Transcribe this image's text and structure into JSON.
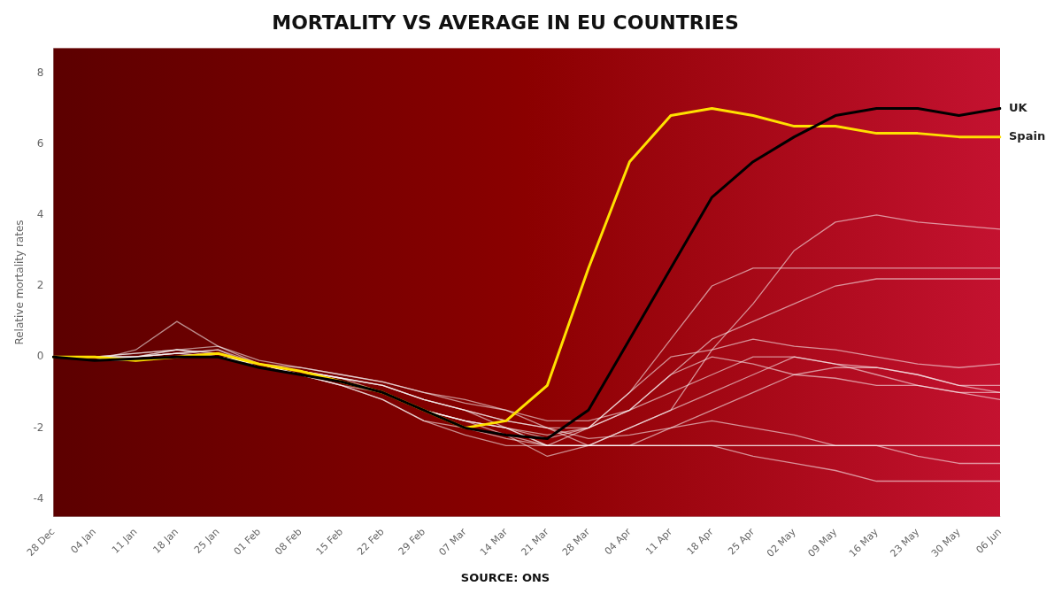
{
  "chart_data": {
    "type": "line",
    "title": "MORTALITY VS AVERAGE IN EU COUNTRIES",
    "source": "SOURCE: ONS",
    "ylabel": "Relative mortality rates",
    "categories": [
      "28 Dec",
      "04 Jan",
      "11 Jan",
      "18 Jan",
      "25 Jan",
      "01 Feb",
      "08 Feb",
      "15 Feb",
      "22 Feb",
      "29 Feb",
      "07 Mar",
      "14 Mar",
      "21 Mar",
      "28 Mar",
      "04 Apr",
      "11 Apr",
      "18 Apr",
      "25 Apr",
      "02 May",
      "09 May",
      "16 May",
      "23 May",
      "30 May",
      "06 Jun"
    ],
    "series": [
      {
        "color": "#FFFFFF",
        "values": [
          0.0,
          -0.1,
          0.2,
          1.0,
          0.3,
          -0.2,
          -0.5,
          -0.8,
          -1.2,
          -1.8,
          -2.0,
          -2.2,
          -2.5,
          -2.5,
          -2.0,
          -1.5,
          0.2,
          1.5,
          3.0,
          3.8,
          4.0,
          3.8,
          3.7,
          3.6
        ]
      },
      {
        "color": "#FFFFFF",
        "values": [
          0.0,
          -0.1,
          0.0,
          0.1,
          0.2,
          -0.3,
          -0.5,
          -0.7,
          -1.0,
          -1.5,
          -1.8,
          -2.0,
          -2.2,
          -2.0,
          -1.0,
          0.5,
          2.0,
          2.5,
          2.5,
          2.5,
          2.5,
          2.5,
          2.5,
          2.5
        ]
      },
      {
        "color": "#FFFFFF",
        "values": [
          0.0,
          0.0,
          -0.1,
          0.0,
          0.0,
          -0.2,
          -0.4,
          -0.6,
          -0.8,
          -1.2,
          -1.5,
          -1.8,
          -2.0,
          -2.0,
          -1.5,
          -0.5,
          0.5,
          1.0,
          1.5,
          2.0,
          2.2,
          2.2,
          2.2,
          2.2
        ]
      },
      {
        "color": "#FFFFFF",
        "values": [
          0.0,
          0.0,
          0.1,
          0.2,
          0.1,
          -0.3,
          -0.5,
          -0.8,
          -1.2,
          -1.8,
          -2.2,
          -2.5,
          -2.5,
          -2.0,
          -1.0,
          0.0,
          0.2,
          0.5,
          0.3,
          0.2,
          0.0,
          -0.2,
          -0.3,
          -0.2
        ]
      },
      {
        "color": "#FFFFFF",
        "values": [
          0.0,
          0.0,
          0.0,
          0.1,
          0.0,
          -0.2,
          -0.4,
          -0.7,
          -1.0,
          -1.5,
          -1.8,
          -2.0,
          -2.3,
          -2.0,
          -1.5,
          -0.5,
          0.0,
          -0.2,
          -0.5,
          -0.6,
          -0.8,
          -0.8,
          -1.0,
          -1.0
        ]
      },
      {
        "color": "#FFFFFF",
        "values": [
          0.0,
          -0.1,
          -0.1,
          0.0,
          0.0,
          -0.2,
          -0.5,
          -0.8,
          -1.0,
          -1.5,
          -1.8,
          -2.2,
          -2.8,
          -2.5,
          -2.5,
          -2.0,
          -1.8,
          -2.0,
          -2.2,
          -2.5,
          -2.5,
          -2.5,
          -2.5,
          -2.5
        ]
      },
      {
        "color": "#FFFFFF",
        "values": [
          0.0,
          0.0,
          0.0,
          0.2,
          0.0,
          -0.2,
          -0.4,
          -0.6,
          -0.8,
          -1.2,
          -1.5,
          -2.0,
          -2.5,
          -2.5,
          -2.5,
          -2.5,
          -2.5,
          -2.8,
          -3.0,
          -3.2,
          -3.5,
          -3.5,
          -3.5,
          -3.5
        ]
      },
      {
        "color": "#FFFFFF",
        "values": [
          0.0,
          0.0,
          0.1,
          0.2,
          0.3,
          -0.1,
          -0.3,
          -0.5,
          -0.7,
          -1.0,
          -1.2,
          -1.5,
          -2.0,
          -2.5,
          -2.5,
          -2.5,
          -2.5,
          -2.5,
          -2.5,
          -2.5,
          -2.5,
          -2.5,
          -2.5,
          -2.5
        ]
      },
      {
        "color": "#FFFFFF",
        "values": [
          0.0,
          0.0,
          0.0,
          0.1,
          0.2,
          -0.2,
          -0.5,
          -0.7,
          -1.0,
          -1.5,
          -1.8,
          -2.0,
          -2.5,
          -2.5,
          -2.0,
          -1.5,
          -1.0,
          -0.5,
          0.0,
          -0.2,
          -0.5,
          -0.8,
          -1.0,
          -1.2
        ]
      },
      {
        "color": "#FFFFFF",
        "values": [
          0.0,
          -0.1,
          0.0,
          0.1,
          0.0,
          -0.2,
          -0.4,
          -0.6,
          -0.8,
          -1.2,
          -1.5,
          -1.8,
          -2.0,
          -2.3,
          -2.2,
          -2.0,
          -1.5,
          -1.0,
          -0.5,
          -0.3,
          -0.3,
          -0.5,
          -0.8,
          -1.0
        ]
      },
      {
        "color": "#FFFFFF",
        "values": [
          0.0,
          0.0,
          0.0,
          0.2,
          0.1,
          -0.2,
          -0.4,
          -0.6,
          -1.0,
          -1.5,
          -2.0,
          -2.3,
          -2.5,
          -2.5,
          -2.5,
          -2.5,
          -2.5,
          -2.5,
          -2.5,
          -2.5,
          -2.5,
          -2.8,
          -3.0,
          -3.0
        ]
      },
      {
        "color": "#FFFFFF",
        "values": [
          0.0,
          0.0,
          -0.1,
          0.0,
          0.0,
          -0.2,
          -0.3,
          -0.5,
          -0.7,
          -1.0,
          -1.3,
          -1.5,
          -1.8,
          -1.8,
          -1.5,
          -1.0,
          -0.5,
          0.0,
          0.0,
          -0.2,
          -0.3,
          -0.5,
          -0.8,
          -0.8
        ]
      },
      {
        "name": "Spain",
        "color": "#FFE000",
        "values": [
          0.0,
          0.0,
          -0.1,
          0.0,
          0.1,
          -0.2,
          -0.4,
          -0.7,
          -1.0,
          -1.5,
          -2.0,
          -1.8,
          -0.8,
          2.5,
          5.5,
          6.8,
          7.0,
          6.8,
          6.5,
          6.5,
          6.3,
          6.3,
          6.2,
          6.2
        ]
      },
      {
        "name": "UK",
        "color": "#000000",
        "values": [
          0.0,
          -0.1,
          -0.05,
          0.0,
          0.0,
          -0.3,
          -0.5,
          -0.7,
          -1.0,
          -1.5,
          -2.0,
          -2.2,
          -2.3,
          -1.5,
          0.5,
          2.5,
          4.5,
          5.5,
          6.2,
          6.8,
          7.0,
          7.0,
          6.8,
          7.0
        ]
      }
    ],
    "ylim": [
      -4.5,
      8.7
    ],
    "yticks": [
      -4,
      -2,
      0,
      2,
      4,
      6,
      8
    ],
    "grid": false,
    "marker": "none"
  }
}
